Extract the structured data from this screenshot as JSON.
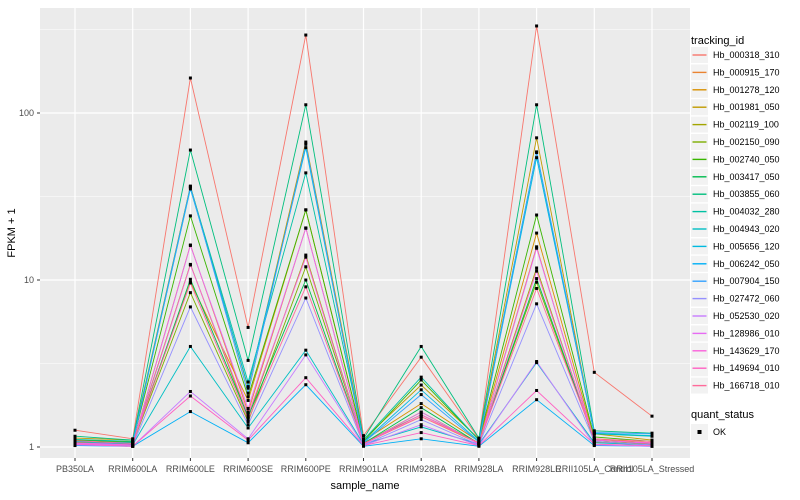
{
  "figure": {
    "background": "#FFFFFF",
    "panel_background": "#EBEBEB",
    "gridline_color": "#FFFFFF",
    "tick_color": "#333333",
    "tick_text_color": "#4D4D4D",
    "point_color": "#000000"
  },
  "legend": {
    "color_title": "tracking_id",
    "shape_title": "quant_status",
    "shape_items": [
      {
        "label": "OK"
      }
    ],
    "key_fill": "#F2F2F2"
  },
  "chart_data": {
    "type": "line",
    "title": "",
    "xlabel": "sample_name",
    "ylabel": "FPKM + 1",
    "y_scale": "log10",
    "y_ticks": [
      1,
      10,
      100
    ],
    "y_minor_ticks": [
      3.162,
      31.62,
      316.2
    ],
    "ylim": [
      0.95,
      430
    ],
    "grid": "on",
    "legend_position": "right",
    "categories": [
      "PB350LA",
      "RRIM600LA",
      "RRIM600LE",
      "RRIM600SE",
      "RRIM600PE",
      "RRIM901LA",
      "RRIM928BA",
      "RRIM928LA",
      "RRIM928LE",
      "RRII105LA_Control",
      "RRII105LA_Stressed"
    ],
    "series": [
      {
        "name": "Hb_000318_310",
        "color": "#F8766D",
        "values": [
          1.26,
          1.12,
          162,
          5.2,
          293,
          1.17,
          3.45,
          1.12,
          332,
          2.8,
          1.53
        ]
      },
      {
        "name": "Hb_000915_170",
        "color": "#EA8331",
        "values": [
          1.05,
          1.04,
          16.2,
          1.62,
          20.5,
          1.05,
          1.52,
          1.05,
          15.8,
          1.07,
          1.03
        ]
      },
      {
        "name": "Hb_001278_120",
        "color": "#D89000",
        "values": [
          1.1,
          1.07,
          9.7,
          1.9,
          26.3,
          1.09,
          1.82,
          1.08,
          19.1,
          1.12,
          1.06
        ]
      },
      {
        "name": "Hb_001981_050",
        "color": "#C09B00",
        "values": [
          1.13,
          1.1,
          36.5,
          2.25,
          67,
          1.11,
          2.35,
          1.12,
          71,
          1.2,
          1.1
        ]
      },
      {
        "name": "Hb_002119_100",
        "color": "#A3A500",
        "values": [
          1.05,
          1.05,
          12.4,
          1.5,
          14.1,
          1.05,
          1.62,
          1.05,
          11.8,
          1.08,
          1.04
        ]
      },
      {
        "name": "Hb_002150_090",
        "color": "#7CAE00",
        "values": [
          1.07,
          1.05,
          8.4,
          1.42,
          12.0,
          1.06,
          1.56,
          1.06,
          9.7,
          1.1,
          1.05
        ]
      },
      {
        "name": "Hb_002740_050",
        "color": "#39B600",
        "values": [
          1.1,
          1.07,
          24.2,
          2.0,
          26.3,
          1.08,
          2.52,
          1.1,
          24.5,
          1.15,
          1.08
        ]
      },
      {
        "name": "Hb_003417_050",
        "color": "#00BB4E",
        "values": [
          1.06,
          1.04,
          10.1,
          1.52,
          10.0,
          1.05,
          1.72,
          1.05,
          10.2,
          1.1,
          1.05
        ]
      },
      {
        "name": "Hb_003855_060",
        "color": "#00BF7D",
        "values": [
          1.16,
          1.1,
          60,
          3.3,
          112,
          1.12,
          4.0,
          1.13,
          112,
          1.25,
          1.21
        ]
      },
      {
        "name": "Hb_004032_280",
        "color": "#00C1A3",
        "values": [
          1.11,
          1.08,
          36.2,
          2.45,
          43.8,
          1.1,
          2.62,
          1.1,
          58,
          1.2,
          1.16
        ]
      },
      {
        "name": "Hb_004943_020",
        "color": "#00BFC4",
        "values": [
          1.05,
          1.03,
          4.0,
          1.3,
          3.8,
          1.04,
          1.32,
          1.04,
          3.2,
          1.06,
          1.03
        ]
      },
      {
        "name": "Hb_005656_120",
        "color": "#00BAE0",
        "values": [
          1.08,
          1.06,
          35.1,
          2.3,
          62,
          1.07,
          2.2,
          1.08,
          54,
          1.21,
          1.17
        ]
      },
      {
        "name": "Hb_006242_050",
        "color": "#00B0F6",
        "values": [
          1.02,
          1.01,
          1.63,
          1.06,
          2.36,
          1.01,
          1.12,
          1.01,
          1.92,
          1.02,
          1.01
        ]
      },
      {
        "name": "Hb_007904_150",
        "color": "#35A2FF",
        "values": [
          1.06,
          1.05,
          36.0,
          2.1,
          65,
          1.06,
          2.06,
          1.07,
          58.5,
          1.22,
          1.2
        ]
      },
      {
        "name": "Hb_027472_060",
        "color": "#9590FF",
        "values": [
          1.04,
          1.02,
          6.9,
          1.36,
          7.8,
          1.03,
          1.46,
          1.03,
          7.2,
          1.08,
          1.03
        ]
      },
      {
        "name": "Hb_052530_020",
        "color": "#C77CFF",
        "values": [
          1.03,
          1.01,
          2.15,
          1.12,
          3.56,
          1.02,
          1.36,
          1.02,
          3.25,
          1.03,
          1.01
        ]
      },
      {
        "name": "Hb_128986_010",
        "color": "#E76BF3",
        "values": [
          1.05,
          1.03,
          16.1,
          1.7,
          20.4,
          1.04,
          1.62,
          1.04,
          15.5,
          1.1,
          1.05
        ]
      },
      {
        "name": "Hb_143629_170",
        "color": "#FA62DB",
        "values": [
          1.06,
          1.03,
          12.3,
          1.56,
          13.7,
          1.04,
          1.56,
          1.05,
          11.3,
          1.1,
          1.06
        ]
      },
      {
        "name": "Hb_149694_010",
        "color": "#FF61C3",
        "values": [
          1.04,
          1.01,
          2.02,
          1.1,
          2.6,
          1.02,
          1.22,
          1.02,
          2.18,
          1.04,
          1.02
        ]
      },
      {
        "name": "Hb_166718_010",
        "color": "#FF6A9A",
        "values": [
          1.09,
          1.05,
          9.6,
          1.46,
          9.1,
          1.05,
          1.52,
          1.06,
          8.9,
          1.12,
          1.08
        ]
      }
    ]
  }
}
